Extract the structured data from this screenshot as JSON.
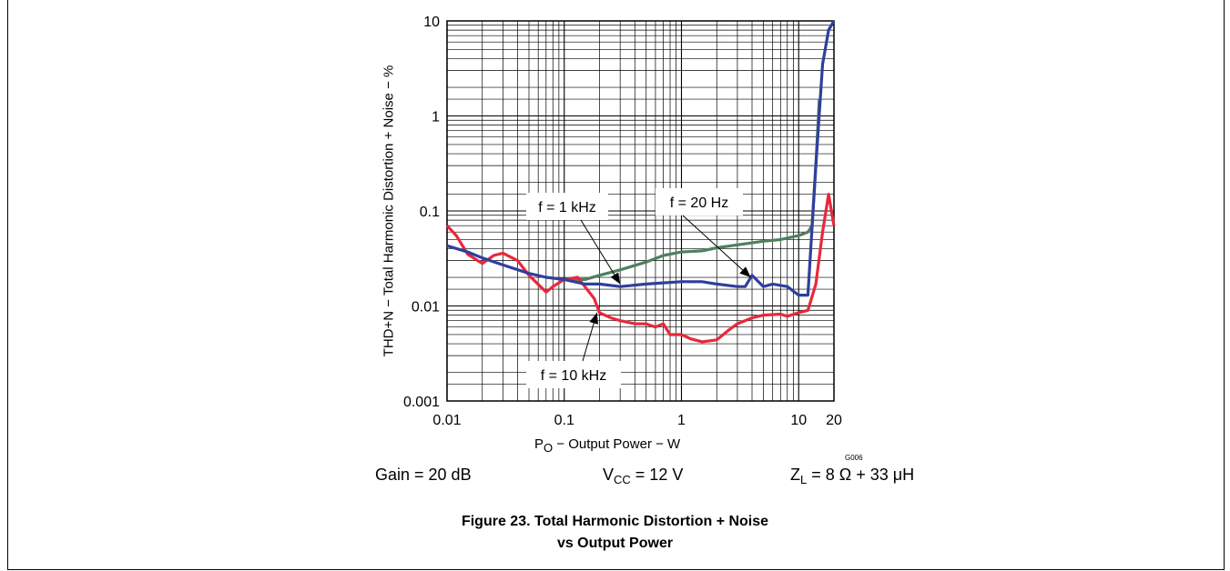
{
  "chart_data": {
    "type": "line",
    "xscale": "log",
    "yscale": "log",
    "xlim": [
      0.01,
      20
    ],
    "ylim": [
      0.001,
      10
    ],
    "x_ticks": [
      "0.01",
      "0.1",
      "1",
      "10",
      "20"
    ],
    "y_ticks": [
      "0.001",
      "0.01",
      "0.1",
      "1",
      "10"
    ],
    "x_tick_values": [
      0.01,
      0.1,
      1,
      10,
      20
    ],
    "y_tick_values": [
      0.001,
      0.01,
      0.1,
      1,
      10
    ],
    "xlabel_main": "P",
    "xlabel_sub": "O",
    "xlabel_rest": " − Output Power − W",
    "ylabel": "THD+N − Total Harmonic Distortion + Noise − %",
    "grid": true,
    "colors": {
      "f_1khz": "#2f3f9c",
      "f_20hz": "#4f7f5f",
      "f_10khz": "#e8283c"
    },
    "series": [
      {
        "name": "f = 1 kHz",
        "x": [
          0.01,
          0.015,
          0.02,
          0.03,
          0.05,
          0.07,
          0.1,
          0.15,
          0.2,
          0.3,
          0.5,
          0.7,
          1,
          1.5,
          2,
          3,
          3.5,
          4,
          5,
          6,
          8,
          10,
          12,
          14,
          16,
          18,
          20
        ],
        "y": [
          0.043,
          0.037,
          0.032,
          0.027,
          0.022,
          0.02,
          0.019,
          0.017,
          0.017,
          0.016,
          0.017,
          0.0175,
          0.018,
          0.018,
          0.017,
          0.016,
          0.016,
          0.021,
          0.016,
          0.017,
          0.016,
          0.013,
          0.013,
          0.3,
          3.5,
          8,
          10
        ]
      },
      {
        "name": "f = 20 Hz",
        "x": [
          0.1,
          0.15,
          0.2,
          0.3,
          0.5,
          0.7,
          1,
          1.5,
          2,
          3,
          5,
          7,
          10,
          12,
          13,
          14,
          15
        ],
        "y": [
          0.019,
          0.019,
          0.021,
          0.024,
          0.029,
          0.034,
          0.037,
          0.038,
          0.041,
          0.044,
          0.048,
          0.05,
          0.055,
          0.06,
          0.07,
          0.3,
          1.5
        ]
      },
      {
        "name": "f = 10 kHz",
        "x": [
          0.01,
          0.012,
          0.015,
          0.02,
          0.025,
          0.03,
          0.04,
          0.05,
          0.07,
          0.08,
          0.1,
          0.13,
          0.15,
          0.18,
          0.2,
          0.25,
          0.3,
          0.4,
          0.5,
          0.6,
          0.7,
          0.8,
          1,
          1.2,
          1.5,
          2,
          2.5,
          3,
          4,
          5,
          7,
          8,
          10,
          12,
          14,
          16,
          18,
          20
        ],
        "y": [
          0.07,
          0.055,
          0.035,
          0.028,
          0.034,
          0.036,
          0.03,
          0.021,
          0.014,
          0.016,
          0.019,
          0.02,
          0.016,
          0.012,
          0.0085,
          0.0075,
          0.007,
          0.0065,
          0.0065,
          0.006,
          0.0065,
          0.005,
          0.005,
          0.0045,
          0.0042,
          0.0044,
          0.0055,
          0.0065,
          0.0075,
          0.008,
          0.0082,
          0.0078,
          0.0085,
          0.009,
          0.017,
          0.06,
          0.15,
          0.07
        ]
      }
    ],
    "annotations": [
      {
        "label": "f = 1 kHz",
        "arrow_to_x": 0.3,
        "arrow_to_y": 0.017
      },
      {
        "label": "f = 20 Hz",
        "arrow_to_x": 3.9,
        "arrow_to_y": 0.02
      },
      {
        "label": "f = 10 kHz",
        "arrow_to_x": 0.19,
        "arrow_to_y": 0.0085
      }
    ]
  },
  "code": "G006",
  "conditions": {
    "gain": "Gain = 20 dB",
    "vcc_main": "V",
    "vcc_sub": "CC",
    "vcc_rest": " = 12 V",
    "zl_main": "Z",
    "zl_sub": "L",
    "zl_rest": " = 8 Ω + 33 μH"
  },
  "caption": {
    "line1": "Figure 23. Total Harmonic Distortion + Noise",
    "line2": "vs Output Power"
  }
}
